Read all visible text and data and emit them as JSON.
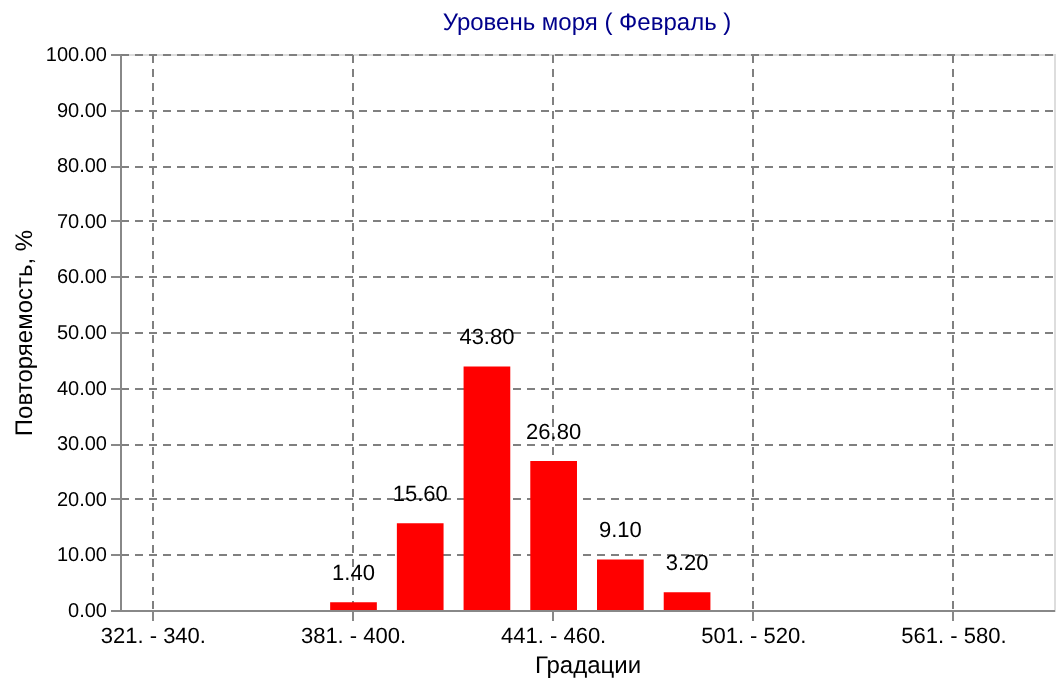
{
  "chart_data": {
    "type": "bar",
    "title": "Уровень моря     ( Февраль )",
    "xlabel": "Градации",
    "ylabel": "Повторяемость, %",
    "categories": [
      "321. - 340.",
      null,
      null,
      "381. - 400.",
      null,
      null,
      "441. - 460.",
      null,
      null,
      "501. - 520.",
      null,
      null,
      "561. - 580.",
      null
    ],
    "values": [
      null,
      null,
      null,
      1.4,
      15.6,
      43.8,
      26.8,
      9.1,
      3.2,
      null,
      null,
      null,
      null,
      null
    ],
    "value_labels": [
      null,
      null,
      null,
      "1.40",
      "15.60",
      "43.80",
      "26.80",
      "9.10",
      "3.20",
      null,
      null,
      null,
      null,
      null
    ],
    "color": "#ff0000",
    "ylim": [
      0,
      100
    ],
    "yticks": [
      {
        "value": 0,
        "label": "0.00"
      },
      {
        "value": 10,
        "label": "10.00"
      },
      {
        "value": 20,
        "label": "20.00"
      },
      {
        "value": 30,
        "label": "30.00"
      },
      {
        "value": 40,
        "label": "40.00"
      },
      {
        "value": 50,
        "label": "50.00"
      },
      {
        "value": 60,
        "label": "60.00"
      },
      {
        "value": 70,
        "label": "70.00"
      },
      {
        "value": 80,
        "label": "80.00"
      },
      {
        "value": 90,
        "label": "90.00"
      },
      {
        "value": 100,
        "label": "100.00"
      }
    ],
    "grid": true
  }
}
